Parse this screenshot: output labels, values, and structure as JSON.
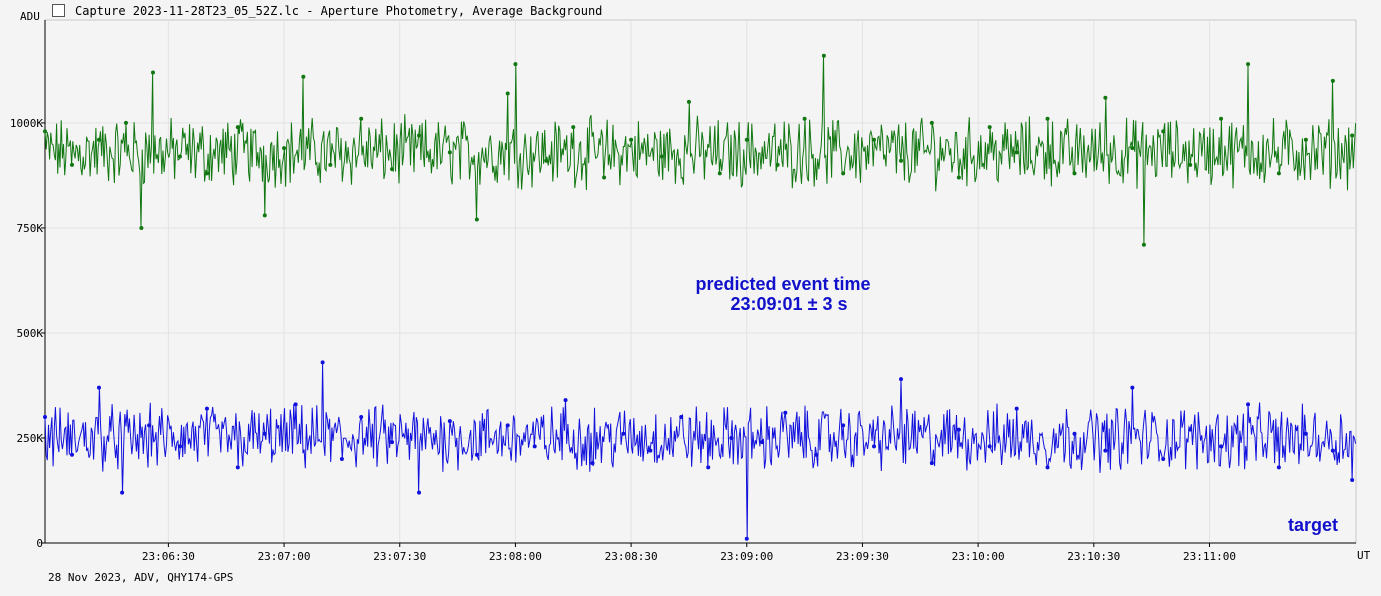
{
  "window": {
    "title": "Capture 2023-11-28T23_05_52Z.lc - Aperture Photometry, Average Background",
    "icon": "chart-icon"
  },
  "footer_text": "28 Nov 2023, ADV, QHY174-GPS",
  "colors": {
    "background": "#f4f4f4",
    "grid": "#e2e2e2",
    "comparison_series": "#117711",
    "target_series": "#1111dd",
    "annotation": "#1111cc"
  },
  "chart_data": {
    "type": "line",
    "title": "Capture 2023-11-28T23_05_52Z.lc - Aperture Photometry, Average Background",
    "xlabel": "UT",
    "ylabel": "ADU",
    "xlim": [
      "23:05:58",
      "23:11:38"
    ],
    "ylim": [
      0,
      1245000
    ],
    "grid": true,
    "y_ticks": [
      {
        "value": 0,
        "label": "0"
      },
      {
        "value": 250000,
        "label": "250K"
      },
      {
        "value": 500000,
        "label": "500K"
      },
      {
        "value": 750000,
        "label": "750K"
      },
      {
        "value": 1000000,
        "label": "1000K"
      }
    ],
    "x_ticks": [
      {
        "value": "23:06:30",
        "label": "23:06:30"
      },
      {
        "value": "23:07:00",
        "label": "23:07:00"
      },
      {
        "value": "23:07:30",
        "label": "23:07:30"
      },
      {
        "value": "23:08:00",
        "label": "23:08:00"
      },
      {
        "value": "23:08:30",
        "label": "23:08:30"
      },
      {
        "value": "23:09:00",
        "label": "23:09:00"
      },
      {
        "value": "23:09:30",
        "label": "23:09:30"
      },
      {
        "value": "23:10:00",
        "label": "23:10:00"
      },
      {
        "value": "23:10:30",
        "label": "23:10:30"
      },
      {
        "value": "23:11:00",
        "label": "23:11:00"
      }
    ],
    "series": [
      {
        "name": "",
        "color": "#117711",
        "summary": {
          "typical": 930000,
          "min": 710000,
          "max": 1160000
        },
        "points": [
          {
            "x": "23:05:58",
            "y": 980000
          },
          {
            "x": "23:06:05",
            "y": 900000
          },
          {
            "x": "23:06:12",
            "y": 960000
          },
          {
            "x": "23:06:19",
            "y": 1000000
          },
          {
            "x": "23:06:23",
            "y": 750000
          },
          {
            "x": "23:06:26",
            "y": 1120000
          },
          {
            "x": "23:06:33",
            "y": 920000
          },
          {
            "x": "23:06:40",
            "y": 880000
          },
          {
            "x": "23:06:48",
            "y": 990000
          },
          {
            "x": "23:06:55",
            "y": 780000
          },
          {
            "x": "23:07:00",
            "y": 940000
          },
          {
            "x": "23:07:05",
            "y": 1110000
          },
          {
            "x": "23:07:12",
            "y": 900000
          },
          {
            "x": "23:07:20",
            "y": 1010000
          },
          {
            "x": "23:07:28",
            "y": 890000
          },
          {
            "x": "23:07:35",
            "y": 970000
          },
          {
            "x": "23:07:43",
            "y": 930000
          },
          {
            "x": "23:07:50",
            "y": 770000
          },
          {
            "x": "23:07:58",
            "y": 1070000
          },
          {
            "x": "23:08:00",
            "y": 1140000
          },
          {
            "x": "23:08:08",
            "y": 910000
          },
          {
            "x": "23:08:15",
            "y": 990000
          },
          {
            "x": "23:08:23",
            "y": 870000
          },
          {
            "x": "23:08:30",
            "y": 960000
          },
          {
            "x": "23:08:38",
            "y": 920000
          },
          {
            "x": "23:08:45",
            "y": 1050000
          },
          {
            "x": "23:08:53",
            "y": 880000
          },
          {
            "x": "23:09:00",
            "y": 960000
          },
          {
            "x": "23:09:08",
            "y": 900000
          },
          {
            "x": "23:09:15",
            "y": 1010000
          },
          {
            "x": "23:09:20",
            "y": 1160000
          },
          {
            "x": "23:09:25",
            "y": 880000
          },
          {
            "x": "23:09:33",
            "y": 960000
          },
          {
            "x": "23:09:40",
            "y": 910000
          },
          {
            "x": "23:09:48",
            "y": 1000000
          },
          {
            "x": "23:09:55",
            "y": 870000
          },
          {
            "x": "23:10:03",
            "y": 990000
          },
          {
            "x": "23:10:10",
            "y": 930000
          },
          {
            "x": "23:10:18",
            "y": 1010000
          },
          {
            "x": "23:10:25",
            "y": 880000
          },
          {
            "x": "23:10:33",
            "y": 1060000
          },
          {
            "x": "23:10:40",
            "y": 940000
          },
          {
            "x": "23:10:43",
            "y": 710000
          },
          {
            "x": "23:10:48",
            "y": 980000
          },
          {
            "x": "23:10:55",
            "y": 900000
          },
          {
            "x": "23:11:03",
            "y": 1010000
          },
          {
            "x": "23:11:10",
            "y": 1140000
          },
          {
            "x": "23:11:18",
            "y": 880000
          },
          {
            "x": "23:11:25",
            "y": 960000
          },
          {
            "x": "23:11:32",
            "y": 1100000
          },
          {
            "x": "23:11:37",
            "y": 970000
          }
        ]
      },
      {
        "name": "target",
        "color": "#1111dd",
        "summary": {
          "typical": 250000,
          "min": 10000,
          "max": 430000
        },
        "points": [
          {
            "x": "23:05:58",
            "y": 300000
          },
          {
            "x": "23:06:05",
            "y": 210000
          },
          {
            "x": "23:06:12",
            "y": 370000
          },
          {
            "x": "23:06:18",
            "y": 120000
          },
          {
            "x": "23:06:25",
            "y": 280000
          },
          {
            "x": "23:06:33",
            "y": 230000
          },
          {
            "x": "23:06:40",
            "y": 320000
          },
          {
            "x": "23:06:48",
            "y": 180000
          },
          {
            "x": "23:06:55",
            "y": 260000
          },
          {
            "x": "23:07:03",
            "y": 330000
          },
          {
            "x": "23:07:10",
            "y": 430000
          },
          {
            "x": "23:07:15",
            "y": 200000
          },
          {
            "x": "23:07:20",
            "y": 300000
          },
          {
            "x": "23:07:28",
            "y": 240000
          },
          {
            "x": "23:07:35",
            "y": 120000
          },
          {
            "x": "23:07:43",
            "y": 290000
          },
          {
            "x": "23:07:50",
            "y": 210000
          },
          {
            "x": "23:07:58",
            "y": 280000
          },
          {
            "x": "23:08:05",
            "y": 230000
          },
          {
            "x": "23:08:13",
            "y": 340000
          },
          {
            "x": "23:08:20",
            "y": 190000
          },
          {
            "x": "23:08:28",
            "y": 260000
          },
          {
            "x": "23:08:35",
            "y": 220000
          },
          {
            "x": "23:08:43",
            "y": 300000
          },
          {
            "x": "23:08:50",
            "y": 180000
          },
          {
            "x": "23:08:56",
            "y": 250000
          },
          {
            "x": "23:09:00",
            "y": 10000
          },
          {
            "x": "23:09:04",
            "y": 240000
          },
          {
            "x": "23:09:10",
            "y": 310000
          },
          {
            "x": "23:09:18",
            "y": 210000
          },
          {
            "x": "23:09:25",
            "y": 280000
          },
          {
            "x": "23:09:33",
            "y": 230000
          },
          {
            "x": "23:09:40",
            "y": 390000
          },
          {
            "x": "23:09:48",
            "y": 190000
          },
          {
            "x": "23:09:55",
            "y": 270000
          },
          {
            "x": "23:10:03",
            "y": 230000
          },
          {
            "x": "23:10:10",
            "y": 320000
          },
          {
            "x": "23:10:18",
            "y": 180000
          },
          {
            "x": "23:10:25",
            "y": 260000
          },
          {
            "x": "23:10:33",
            "y": 220000
          },
          {
            "x": "23:10:40",
            "y": 370000
          },
          {
            "x": "23:10:48",
            "y": 200000
          },
          {
            "x": "23:10:55",
            "y": 270000
          },
          {
            "x": "23:11:03",
            "y": 230000
          },
          {
            "x": "23:11:10",
            "y": 330000
          },
          {
            "x": "23:11:18",
            "y": 180000
          },
          {
            "x": "23:11:25",
            "y": 260000
          },
          {
            "x": "23:11:32",
            "y": 220000
          },
          {
            "x": "23:11:37",
            "y": 150000
          }
        ]
      }
    ],
    "annotations": [
      {
        "text": "predicted event time",
        "color": "#1111cc"
      },
      {
        "text": "23:09:01 ± 3 s",
        "color": "#1111cc"
      }
    ]
  }
}
